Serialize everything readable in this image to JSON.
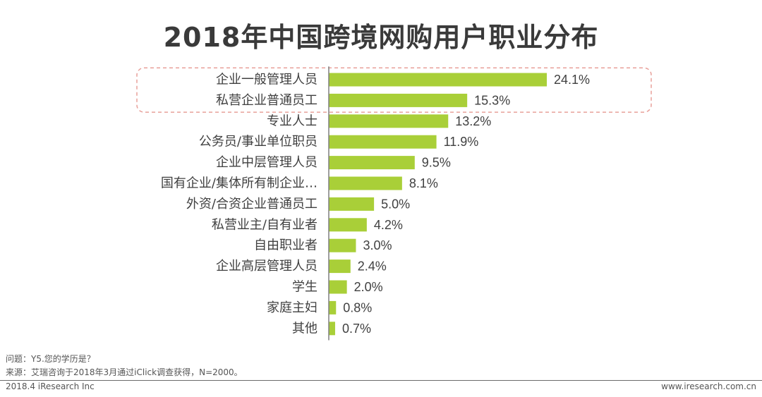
{
  "chart_data": {
    "type": "bar",
    "orientation": "horizontal",
    "title": "2018年中国跨境网购用户职业分布",
    "xlabel": "",
    "ylabel": "",
    "xlim": [
      0,
      25
    ],
    "unit": "%",
    "categories": [
      "企业一般管理人员",
      "私营企业普通员工",
      "专业人士",
      "公务员/事业单位职员",
      "企业中层管理人员",
      "国有企业/集体所有制企业…",
      "外资/合资企业普通员工",
      "私营业主/自有业者",
      "自由职业者",
      "企业高层管理人员",
      "学生",
      "家庭主妇",
      "其他"
    ],
    "values": [
      24.1,
      15.3,
      13.2,
      11.9,
      9.5,
      8.1,
      5.0,
      4.2,
      3.0,
      2.4,
      2.0,
      0.8,
      0.7
    ],
    "value_labels": [
      "24.1%",
      "15.3%",
      "13.2%",
      "11.9%",
      "9.5%",
      "8.1%",
      "5.0%",
      "4.2%",
      "3.0%",
      "2.4%",
      "2.0%",
      "0.8%",
      "0.7%"
    ],
    "highlighted_categories": [
      "企业一般管理人员",
      "私营企业普通员工"
    ],
    "bar_color": "#a9cf38",
    "highlight_box_color": "#e8a09a"
  },
  "notes": {
    "question": "问题：Y5.您的学历是？",
    "source": "来源：艾瑞咨询于2018年3月通过iClick调查获得，N=2000。"
  },
  "footer": {
    "left": "2018.4 iResearch Inc",
    "right": "www.iresearch.com.cn"
  }
}
